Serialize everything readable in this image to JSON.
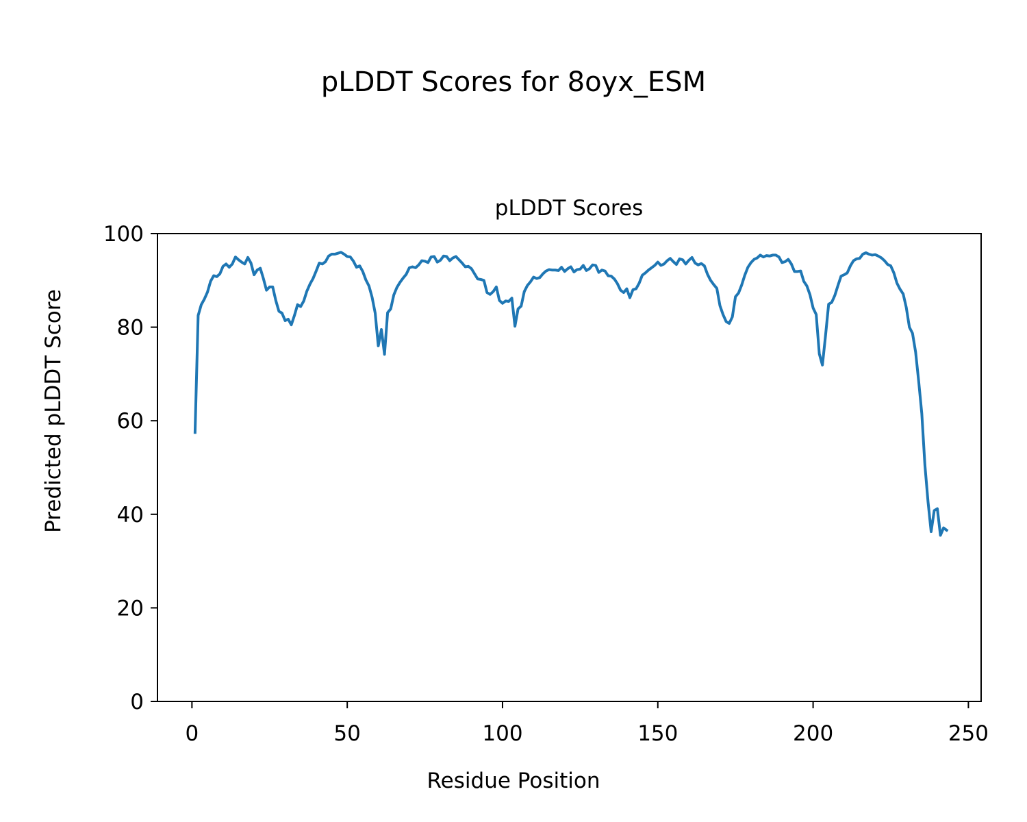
{
  "figure": {
    "suptitle": "pLDDT Scores for 8oyx_ESM"
  },
  "chart_data": {
    "type": "line",
    "title": "pLDDT Scores",
    "xlabel": "Residue Position",
    "ylabel": "Predicted pLDDT Score",
    "xlim": [
      -11.1,
      254.1
    ],
    "ylim": [
      0,
      100
    ],
    "xticks": [
      0,
      50,
      100,
      150,
      200,
      250
    ],
    "yticks": [
      0,
      20,
      40,
      60,
      80,
      100
    ],
    "grid": false,
    "line_color": "#1f77b4",
    "series": [
      {
        "x": [
          1,
          2,
          3,
          4,
          5,
          6,
          7,
          8,
          9,
          10,
          11,
          12,
          13,
          14,
          15,
          16,
          17,
          18,
          19,
          20,
          21,
          22,
          23,
          24,
          25,
          26,
          27,
          28,
          29,
          30,
          31,
          32,
          33,
          34,
          35,
          36,
          37,
          38,
          39,
          40,
          41,
          42,
          43,
          44,
          45,
          46,
          47,
          48,
          49,
          50,
          51,
          52,
          53,
          54,
          55,
          56,
          57,
          58,
          59,
          60,
          61,
          62,
          63,
          64,
          65,
          66,
          67,
          68,
          69,
          70,
          71,
          72,
          73,
          74,
          75,
          76,
          77,
          78,
          79,
          80,
          81,
          82,
          83,
          84,
          85,
          86,
          87,
          88,
          89,
          90,
          91,
          92,
          93,
          94,
          95,
          96,
          97,
          98,
          99,
          100,
          101,
          102,
          103,
          104,
          105,
          106,
          107,
          108,
          109,
          110,
          111,
          112,
          113,
          114,
          115,
          116,
          117,
          118,
          119,
          120,
          121,
          122,
          123,
          124,
          125,
          126,
          127,
          128,
          129,
          130,
          131,
          132,
          133,
          134,
          135,
          136,
          137,
          138,
          139,
          140,
          141,
          142,
          143,
          144,
          145,
          146,
          147,
          148,
          149,
          150,
          151,
          152,
          153,
          154,
          155,
          156,
          157,
          158,
          159,
          160,
          161,
          162,
          163,
          164,
          165,
          166,
          167,
          168,
          169,
          170,
          171,
          172,
          173,
          174,
          175,
          176,
          177,
          178,
          179,
          180,
          181,
          182,
          183,
          184,
          185,
          186,
          187,
          188,
          189,
          190,
          191,
          192,
          193,
          194,
          195,
          196,
          197,
          198,
          199,
          200,
          201,
          202,
          203,
          204,
          205,
          206,
          207,
          208,
          209,
          210,
          211,
          212,
          213,
          214,
          215,
          216,
          217,
          218,
          219,
          220,
          221,
          222,
          223,
          224,
          225,
          226,
          227,
          228,
          229,
          230,
          231,
          232,
          233,
          234,
          235,
          236,
          237,
          238,
          239,
          240,
          241,
          242,
          243
        ],
        "y": [
          57.5,
          82.5,
          84.8,
          86.0,
          87.5,
          89.8,
          91.0,
          90.8,
          91.4,
          93.0,
          93.5,
          92.8,
          93.5,
          95.0,
          94.4,
          93.9,
          93.5,
          94.9,
          93.7,
          91.2,
          92.2,
          92.6,
          90.4,
          87.9,
          88.6,
          88.6,
          85.7,
          83.4,
          83.0,
          81.4,
          81.7,
          80.5,
          82.5,
          84.8,
          84.4,
          85.6,
          87.7,
          89.2,
          90.4,
          92.0,
          93.7,
          93.5,
          94.0,
          95.2,
          95.6,
          95.6,
          95.8,
          96.0,
          95.6,
          95.1,
          95.0,
          94.1,
          92.8,
          93.1,
          91.9,
          90.1,
          88.8,
          86.4,
          83.0,
          76.0,
          79.5,
          74.2,
          83.1,
          83.9,
          86.9,
          88.5,
          89.6,
          90.5,
          91.3,
          92.7,
          92.9,
          92.7,
          93.3,
          94.2,
          94.1,
          93.8,
          95.0,
          95.1,
          93.9,
          94.3,
          95.2,
          95.1,
          94.2,
          94.8,
          95.1,
          94.4,
          93.7,
          92.9,
          93.0,
          92.5,
          91.4,
          90.3,
          90.2,
          90.0,
          87.4,
          87.0,
          87.6,
          88.6,
          85.7,
          85.1,
          85.6,
          85.5,
          86.2,
          80.2,
          83.9,
          84.5,
          87.6,
          88.9,
          89.7,
          90.7,
          90.4,
          90.6,
          91.4,
          92.0,
          92.3,
          92.2,
          92.2,
          92.1,
          92.8,
          91.9,
          92.5,
          92.9,
          91.8,
          92.3,
          92.4,
          93.2,
          92.1,
          92.5,
          93.3,
          93.2,
          91.7,
          92.2,
          92.0,
          91.0,
          90.9,
          90.3,
          89.3,
          87.9,
          87.4,
          88.2,
          86.3,
          88.0,
          88.2,
          89.4,
          91.1,
          91.6,
          92.2,
          92.7,
          93.2,
          93.9,
          93.2,
          93.5,
          94.2,
          94.7,
          94.0,
          93.4,
          94.6,
          94.4,
          93.5,
          94.3,
          94.9,
          93.7,
          93.3,
          93.6,
          93.1,
          91.3,
          90.0,
          89.1,
          88.3,
          84.6,
          82.7,
          81.2,
          80.8,
          82.2,
          86.5,
          87.3,
          89.0,
          91.1,
          92.8,
          93.8,
          94.5,
          94.8,
          95.4,
          95.0,
          95.3,
          95.2,
          95.4,
          95.4,
          95.0,
          93.8,
          94.0,
          94.5,
          93.5,
          91.9,
          91.9,
          92.0,
          89.8,
          88.8,
          86.9,
          84.1,
          82.7,
          74.3,
          71.9,
          78.2,
          84.9,
          85.3,
          86.8,
          88.9,
          90.9,
          91.2,
          91.6,
          93.1,
          94.2,
          94.6,
          94.7,
          95.6,
          95.9,
          95.6,
          95.4,
          95.5,
          95.2,
          94.8,
          94.2,
          93.4,
          93.1,
          91.6,
          89.4,
          88.1,
          87.1,
          84.2,
          80.0,
          78.7,
          74.7,
          68.4,
          61.5,
          50.5,
          42.7,
          36.3,
          40.8,
          41.2,
          35.5,
          37.1,
          36.6
        ]
      }
    ]
  }
}
